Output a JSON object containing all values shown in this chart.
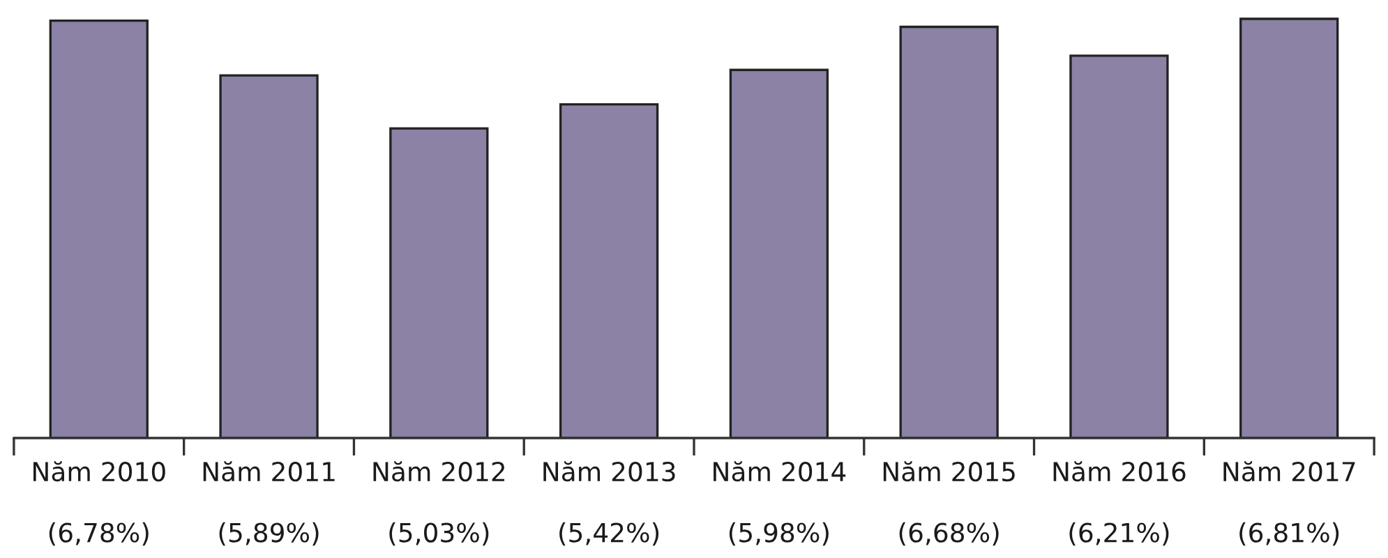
{
  "chart_data": {
    "type": "bar",
    "categories": [
      "Năm 2010",
      "Năm 2011",
      "Năm 2012",
      "Năm 2013",
      "Năm 2014",
      "Năm 2015",
      "Năm 2016",
      "Năm 2017"
    ],
    "values": [
      6.78,
      5.89,
      5.03,
      5.42,
      5.98,
      6.68,
      6.21,
      6.81
    ],
    "value_labels": [
      "(6,78%)",
      "(5,89%)",
      "(5,03%)",
      "(5,42%)",
      "(5,98%)",
      "(6,68%)",
      "(6,21%)",
      "(6,81%)"
    ],
    "color": "#8b82a6",
    "grid": false,
    "legend": false
  }
}
